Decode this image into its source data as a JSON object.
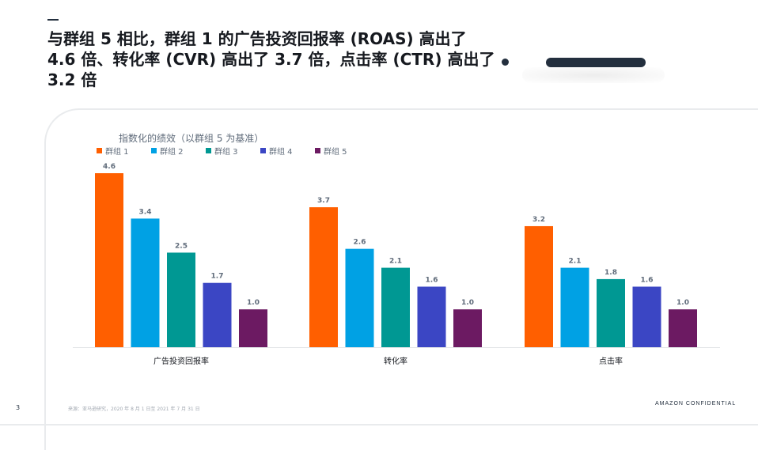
{
  "slide": {
    "headline_lines": [
      "与群组 5 相比，群组 1 的广告投资回报率 (ROAS) 高出了",
      "4.6 倍、转化率 (CVR) 高出了 3.7 倍，点击率 (CTR) 高出了",
      "3.2 倍"
    ],
    "page_number": "3",
    "source_note": "来源：亚马逊研究，2020 年 8 月 1 日至 2021 年 7 月 31 日",
    "confidential_label": "AMAZON CONFIDENTIAL"
  },
  "chart_data": {
    "type": "bar",
    "title": "指数化的绩效（以群组 5 为基准）",
    "xlabel": "",
    "ylabel": "",
    "categories": [
      "广告投资回报率",
      "转化率",
      "点击率"
    ],
    "series": [
      {
        "name": "群组 1",
        "color": "#ff5f00",
        "values": [
          4.6,
          3.7,
          3.2
        ]
      },
      {
        "name": "群组 2",
        "color": "#00a1e4",
        "values": [
          3.4,
          2.6,
          2.1
        ]
      },
      {
        "name": "群组 3",
        "color": "#009893",
        "values": [
          2.5,
          2.1,
          1.8
        ]
      },
      {
        "name": "群组 4",
        "color": "#3b46c4",
        "values": [
          1.7,
          1.6,
          1.6
        ]
      },
      {
        "name": "群组 5",
        "color": "#6c1a62",
        "values": [
          1.0,
          1.0,
          1.0
        ]
      }
    ],
    "value_labels": [
      [
        "4.6",
        "3.7",
        "3.2"
      ],
      [
        "3.4",
        "2.6",
        "2.1"
      ],
      [
        "2.5",
        "2.1",
        "1.8"
      ],
      [
        "1.7",
        "1.6",
        "1.6"
      ],
      [
        "1.0",
        "1.0",
        "1.0"
      ]
    ],
    "ylim": [
      0,
      4.6
    ],
    "grid": false,
    "legend_position": "top-left"
  }
}
